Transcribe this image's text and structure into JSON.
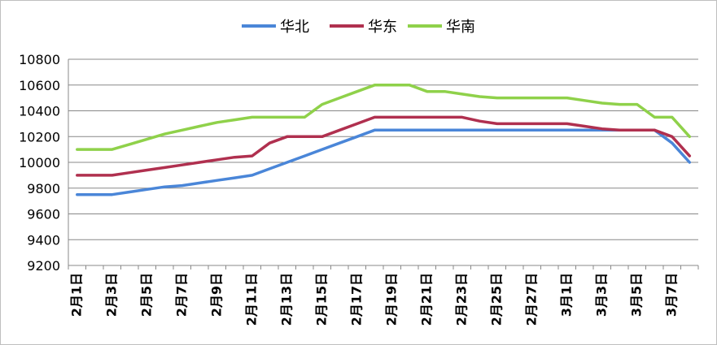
{
  "chart_data": {
    "type": "line",
    "title": "",
    "xlabel": "",
    "ylabel": "",
    "ylim": [
      9200,
      10800
    ],
    "yticks": [
      9200,
      9400,
      9600,
      9800,
      10000,
      10200,
      10400,
      10600,
      10800
    ],
    "grid": true,
    "legend_position": "top",
    "x": [
      "2月1日",
      "2月2日",
      "2月3日",
      "2月4日",
      "2月5日",
      "2月6日",
      "2月7日",
      "2月8日",
      "2月9日",
      "2月10日",
      "2月11日",
      "2月12日",
      "2月13日",
      "2月14日",
      "2月15日",
      "2月16日",
      "2月17日",
      "2月18日",
      "2月19日",
      "2月20日",
      "2月21日",
      "2月22日",
      "2月23日",
      "2月24日",
      "2月25日",
      "2月26日",
      "2月27日",
      "2月28日",
      "3月1日",
      "3月2日",
      "3月3日",
      "3月4日",
      "3月5日",
      "3月6日",
      "3月7日",
      "3月8日"
    ],
    "xtick_labels": [
      "2月1日",
      "2月3日",
      "2月5日",
      "2月7日",
      "2月9日",
      "2月11日",
      "2月13日",
      "2月15日",
      "2月17日",
      "2月19日",
      "2月21日",
      "2月23日",
      "2月25日",
      "2月27日",
      "3月1日",
      "3月3日",
      "3月5日",
      "3月7日"
    ],
    "series": [
      {
        "name": "华北",
        "color": "#4a86d8",
        "values": [
          9750,
          9750,
          9750,
          9770,
          9790,
          9810,
          9820,
          9840,
          9860,
          9880,
          9900,
          9950,
          10000,
          10050,
          10100,
          10150,
          10200,
          10250,
          10250,
          10250,
          10250,
          10250,
          10250,
          10250,
          10250,
          10250,
          10250,
          10250,
          10250,
          10250,
          10250,
          10250,
          10250,
          10250,
          10150,
          10000
        ]
      },
      {
        "name": "华东",
        "color": "#b0304f",
        "values": [
          9900,
          9900,
          9900,
          9920,
          9940,
          9960,
          9980,
          10000,
          10020,
          10040,
          10050,
          10150,
          10200,
          10200,
          10200,
          10250,
          10300,
          10350,
          10350,
          10350,
          10350,
          10350,
          10350,
          10320,
          10300,
          10300,
          10300,
          10300,
          10300,
          10280,
          10260,
          10250,
          10250,
          10250,
          10200,
          10050
        ]
      },
      {
        "name": "华南",
        "color": "#8fd14a",
        "values": [
          10100,
          10100,
          10100,
          10140,
          10180,
          10220,
          10250,
          10280,
          10310,
          10330,
          10350,
          10350,
          10350,
          10350,
          10450,
          10500,
          10550,
          10600,
          10600,
          10600,
          10550,
          10550,
          10530,
          10510,
          10500,
          10500,
          10500,
          10500,
          10500,
          10480,
          10460,
          10450,
          10450,
          10350,
          10350,
          10200
        ]
      }
    ]
  }
}
